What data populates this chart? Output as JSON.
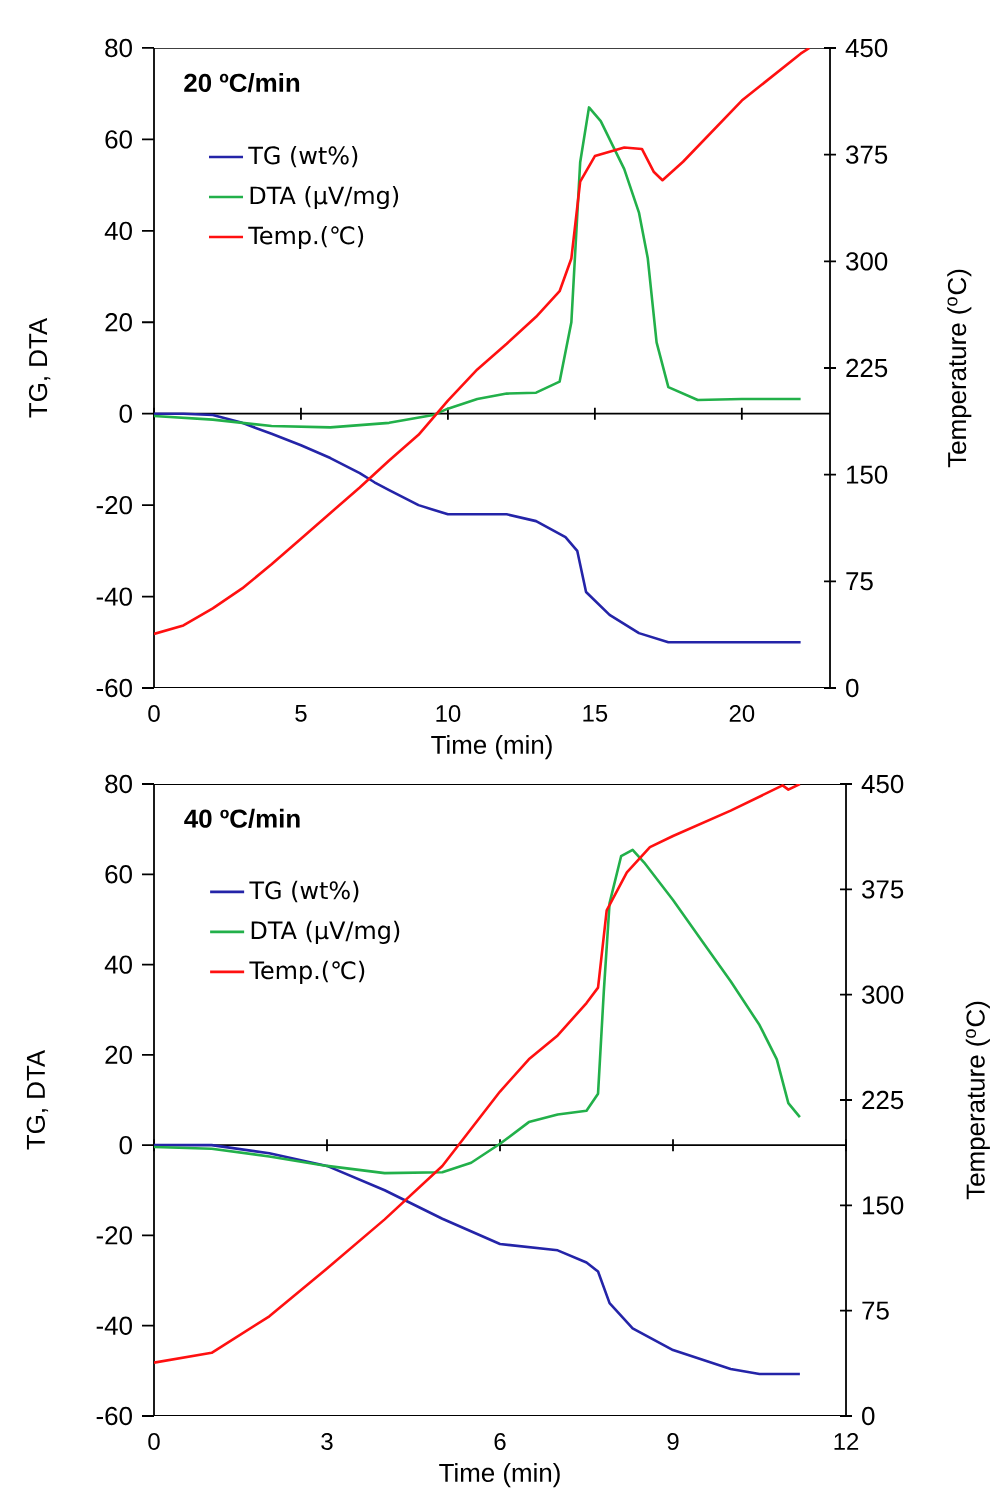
{
  "chart_data": [
    {
      "type": "line",
      "title": "20 ºC/min",
      "xlabel": "Time (min)",
      "ylabel": "TG, DTA",
      "y2label": "Temperature ($^{o}$C)",
      "xlim": [
        0,
        23
      ],
      "xticks": [
        0,
        5,
        10,
        15,
        20
      ],
      "ylim": [
        -60,
        80
      ],
      "yticks": [
        -60,
        -40,
        -20,
        0,
        20,
        40,
        60,
        80
      ],
      "y2lim": [
        0,
        450
      ],
      "y2ticks": [
        0,
        75,
        150,
        225,
        300,
        375,
        450
      ],
      "legend": "top left",
      "series": [
        {
          "name": "TG (wt%)",
          "color": "#2424a8",
          "x": [
            0,
            1,
            2,
            3,
            4,
            5,
            6,
            7,
            7.5,
            8,
            9,
            9.5,
            10,
            12,
            13,
            14,
            14.4,
            14.7,
            15.5,
            16.5,
            17.5,
            22
          ],
          "values": [
            0,
            0,
            -0.3,
            -2,
            -4.4,
            -6.9,
            -9.7,
            -13,
            -15,
            -16.7,
            -20,
            -21,
            -22,
            -22,
            -23.5,
            -27,
            -30,
            -39,
            -44,
            -48,
            -50,
            -50
          ]
        },
        {
          "name": "DTA (µV/mg)",
          "color": "#22b04a",
          "x": [
            0,
            2,
            4,
            6,
            8,
            9.5,
            10,
            11,
            12,
            13,
            13.8,
            14.2,
            14.5,
            14.8,
            15.2,
            16,
            16.5,
            16.8,
            17.1,
            17.5,
            18.5,
            20,
            22
          ],
          "values": [
            -0.5,
            -1.3,
            -2.7,
            -3,
            -2,
            -0.3,
            1.1,
            3.2,
            4.4,
            4.6,
            7,
            20,
            55,
            67,
            64,
            53.5,
            44,
            34,
            15.6,
            5.8,
            3,
            3.2,
            3.2
          ]
        },
        {
          "name": "Temp.(℃)",
          "color": "#ff1010",
          "axis": "y2",
          "x": [
            0,
            1,
            2,
            3,
            4,
            5,
            6,
            7,
            8,
            9,
            10,
            11,
            12,
            13,
            13.8,
            14.2,
            14.5,
            15,
            16,
            16.6,
            17,
            17.3,
            18,
            20,
            22,
            22.3
          ],
          "values": [
            38,
            44,
            56,
            70,
            87,
            105,
            123,
            141,
            160,
            178,
            202,
            224,
            242,
            261,
            279,
            302,
            356,
            374,
            380,
            379,
            363,
            357,
            370,
            413,
            446,
            450
          ]
        }
      ]
    },
    {
      "type": "line",
      "title": "40 ºC/min",
      "xlabel": "Time (min)",
      "ylabel": "TG, DTA",
      "y2label": "Temperature ($^{o}$C)",
      "xlim": [
        0,
        12
      ],
      "xticks": [
        0,
        3,
        6,
        9,
        12
      ],
      "ylim": [
        -60,
        80
      ],
      "yticks": [
        -60,
        -40,
        -20,
        0,
        20,
        40,
        60,
        80
      ],
      "y2lim": [
        0,
        450
      ],
      "y2ticks": [
        0,
        75,
        150,
        225,
        300,
        375,
        450
      ],
      "legend": "top left",
      "series": [
        {
          "name": "TG (wt%)",
          "color": "#2424a8",
          "x": [
            0,
            1,
            2,
            3,
            4,
            5,
            6,
            7,
            7.5,
            7.7,
            7.9,
            8.3,
            9,
            10,
            10.5,
            11.2
          ],
          "values": [
            0,
            0,
            -1.8,
            -4.6,
            -10,
            -16.3,
            -21.9,
            -23.3,
            -26,
            -28,
            -35,
            -40.6,
            -45.4,
            -49.6,
            -50.7,
            -50.7
          ]
        },
        {
          "name": "DTA (µV/mg)",
          "color": "#22b04a",
          "x": [
            0,
            1,
            2,
            3,
            4,
            5,
            5.5,
            6,
            6.5,
            7,
            7.5,
            7.7,
            7.8,
            7.9,
            8.1,
            8.3,
            8.5,
            9,
            9.5,
            10,
            10.5,
            10.8,
            11,
            11.2
          ],
          "values": [
            -0.4,
            -0.8,
            -2.5,
            -4.6,
            -6.2,
            -6,
            -3.9,
            0.3,
            5.1,
            6.8,
            7.6,
            11.4,
            34,
            53.6,
            64,
            65.4,
            62.6,
            54.3,
            45.3,
            36.3,
            26.6,
            19,
            9.3,
            6.2
          ]
        },
        {
          "name": "Temp.(℃)",
          "color": "#ff1010",
          "axis": "y2",
          "x": [
            0,
            1,
            2,
            3,
            4,
            5,
            6,
            6.5,
            7,
            7.5,
            7.7,
            7.85,
            8.2,
            8.6,
            9,
            10,
            10.9,
            11,
            11.2
          ],
          "values": [
            38,
            45,
            71,
            105,
            140,
            178,
            231,
            254,
            271,
            294,
            305,
            360,
            387,
            405,
            413,
            431,
            449,
            446,
            450
          ]
        }
      ]
    }
  ]
}
